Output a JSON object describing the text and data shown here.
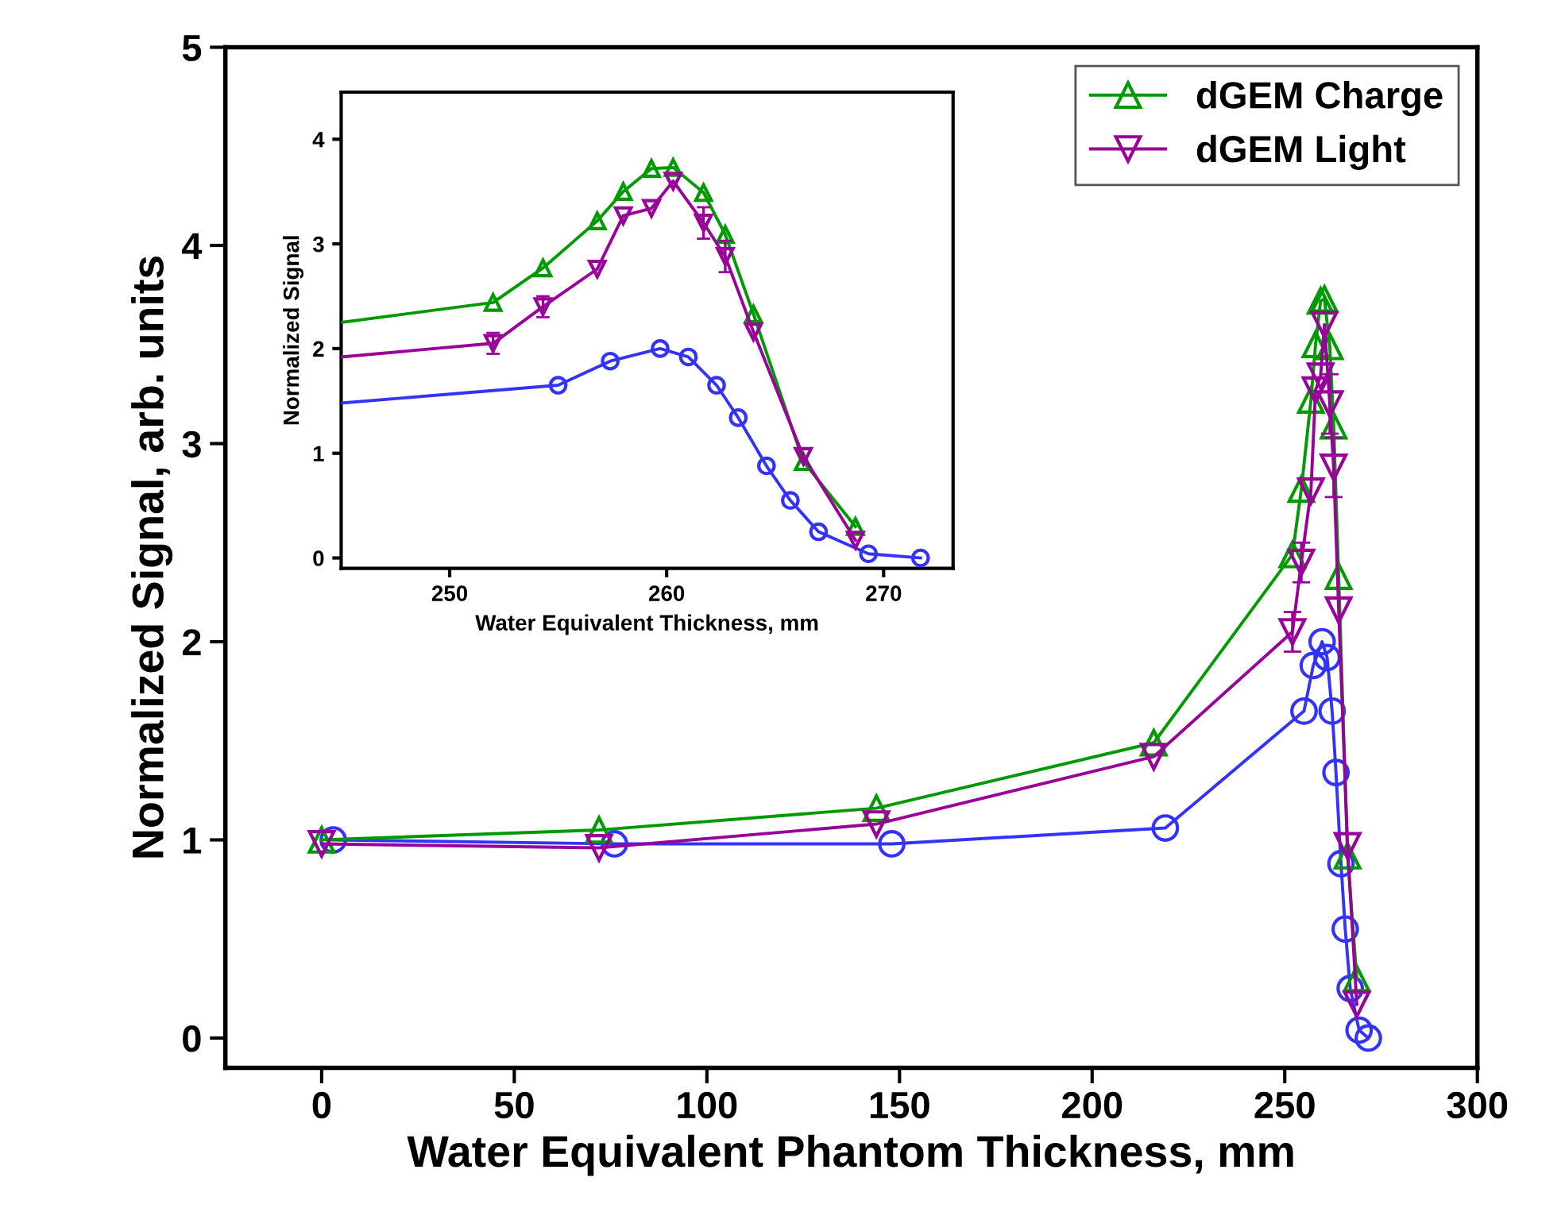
{
  "chart_data": [
    {
      "type": "line",
      "xlabel": "Water Equivalent Phantom Thickness, mm",
      "ylabel": "Normalized Signal, arb. units",
      "xlim": [
        -25,
        300
      ],
      "ylim": [
        -0.15,
        5
      ],
      "xticks": [
        0,
        50,
        100,
        150,
        200,
        250,
        300
      ],
      "yticks": [
        0,
        1,
        2,
        3,
        4,
        5
      ],
      "grid": false,
      "legend": "top right",
      "series": [
        {
          "color": "#3333ff",
          "marker": "circle",
          "x": [
            3,
            76,
            148,
            219,
            255.0,
            257.4,
            259.7,
            261.0,
            262.3,
            263.3,
            264.6,
            265.7,
            267.0,
            269.3,
            271.7
          ],
          "values": [
            1.0,
            0.98,
            0.98,
            1.06,
            1.65,
            1.88,
            2.0,
            1.92,
            1.65,
            1.34,
            0.88,
            0.55,
            0.25,
            0.04,
            0.0
          ]
        },
        {
          "name": "dGEM Charge",
          "color": "#009900",
          "marker": "triangle",
          "x": [
            0,
            72,
            144,
            216,
            252.0,
            254.3,
            256.8,
            258.0,
            259.3,
            260.3,
            261.7,
            262.7,
            264.0,
            266.3,
            268.7
          ],
          "values": [
            1.0,
            1.05,
            1.16,
            1.49,
            2.44,
            2.77,
            3.22,
            3.5,
            3.72,
            3.73,
            3.49,
            3.09,
            2.33,
            0.92,
            0.3
          ]
        },
        {
          "name": "dGEM Light",
          "color": "#990099",
          "marker": "triangle_down",
          "x": [
            0,
            72,
            144,
            216,
            252.0,
            254.3,
            256.8,
            258.0,
            259.3,
            260.3,
            261.7,
            262.7,
            264.0,
            266.3,
            268.7
          ],
          "values": [
            0.98,
            0.96,
            1.08,
            1.42,
            2.05,
            2.4,
            2.76,
            3.27,
            3.34,
            3.6,
            3.2,
            2.88,
            2.16,
            0.97,
            0.17
          ],
          "errors": [
            null,
            null,
            null,
            null,
            0.1,
            0.1,
            null,
            null,
            null,
            null,
            0.15,
            0.15,
            null,
            null,
            null
          ]
        }
      ]
    },
    {
      "type": "line",
      "xlabel": "Water Equivalent Thickness, mm",
      "ylabel": "Normalized Signal",
      "xlim": [
        245,
        273.2
      ],
      "ylim": [
        -0.1,
        4.45
      ],
      "xticks": [
        250,
        260,
        270
      ],
      "yticks": [
        0,
        1,
        2,
        3,
        4
      ],
      "grid": false,
      "series": [
        {
          "color": "#3333ff",
          "marker": "circle",
          "x": [
            245,
            255.0,
            257.4,
            259.7,
            261.0,
            262.3,
            263.3,
            264.6,
            265.7,
            267.0,
            269.3,
            271.7
          ],
          "values": [
            1.48,
            1.65,
            1.88,
            2.0,
            1.92,
            1.65,
            1.34,
            0.88,
            0.55,
            0.25,
            0.04,
            0.0
          ]
        },
        {
          "color": "#009900",
          "marker": "triangle",
          "x": [
            245,
            252.0,
            254.3,
            256.8,
            258.0,
            259.3,
            260.3,
            261.7,
            262.7,
            264.0,
            266.3,
            268.7
          ],
          "values": [
            2.25,
            2.44,
            2.77,
            3.22,
            3.5,
            3.72,
            3.73,
            3.49,
            3.09,
            2.33,
            0.92,
            0.3
          ]
        },
        {
          "color": "#990099",
          "marker": "triangle_down",
          "x": [
            245,
            252.0,
            254.3,
            256.8,
            258.0,
            259.3,
            260.3,
            261.7,
            262.7,
            264.0,
            266.3,
            268.7
          ],
          "values": [
            1.92,
            2.05,
            2.4,
            2.76,
            3.27,
            3.34,
            3.6,
            3.2,
            2.88,
            2.16,
            0.97,
            0.17
          ],
          "errors": [
            null,
            0.1,
            0.1,
            null,
            null,
            null,
            null,
            0.15,
            0.15,
            null,
            null,
            null
          ]
        }
      ]
    }
  ]
}
